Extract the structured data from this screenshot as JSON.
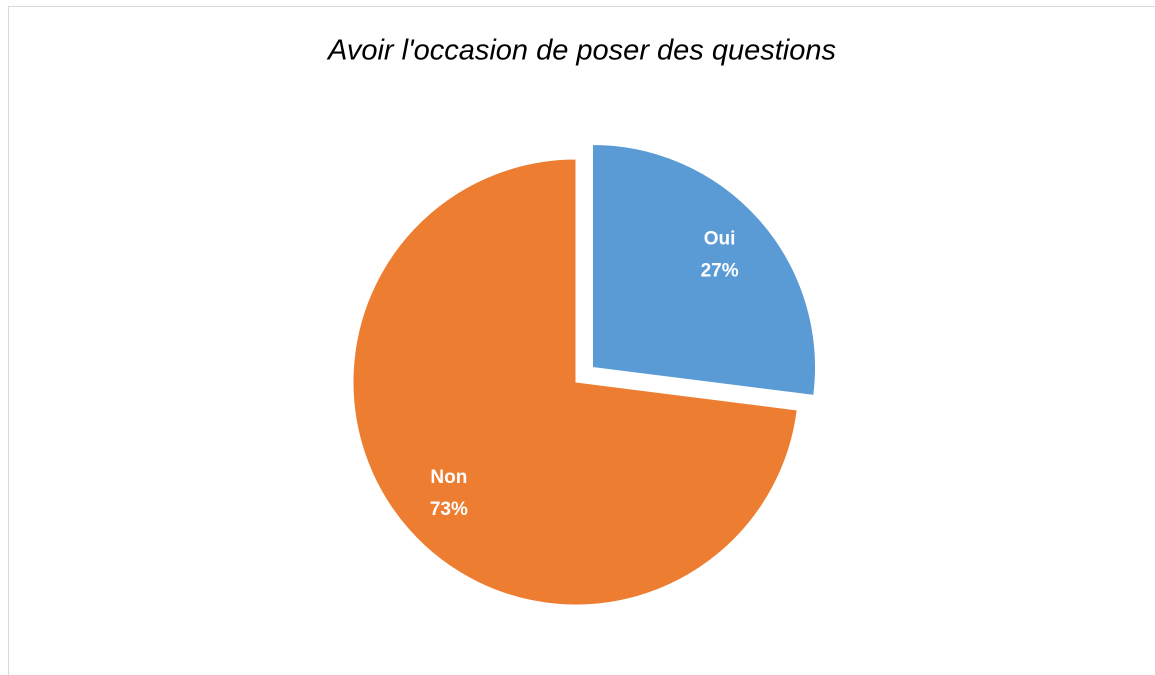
{
  "chart_data": {
    "type": "pie",
    "title": "Avoir l'occasion de poser des questions",
    "categories": [
      "Oui",
      "Non"
    ],
    "values": [
      27,
      73
    ],
    "value_labels": [
      "27%",
      "73%"
    ],
    "colors": [
      "#5b9bd5",
      "#ed7d31"
    ]
  }
}
